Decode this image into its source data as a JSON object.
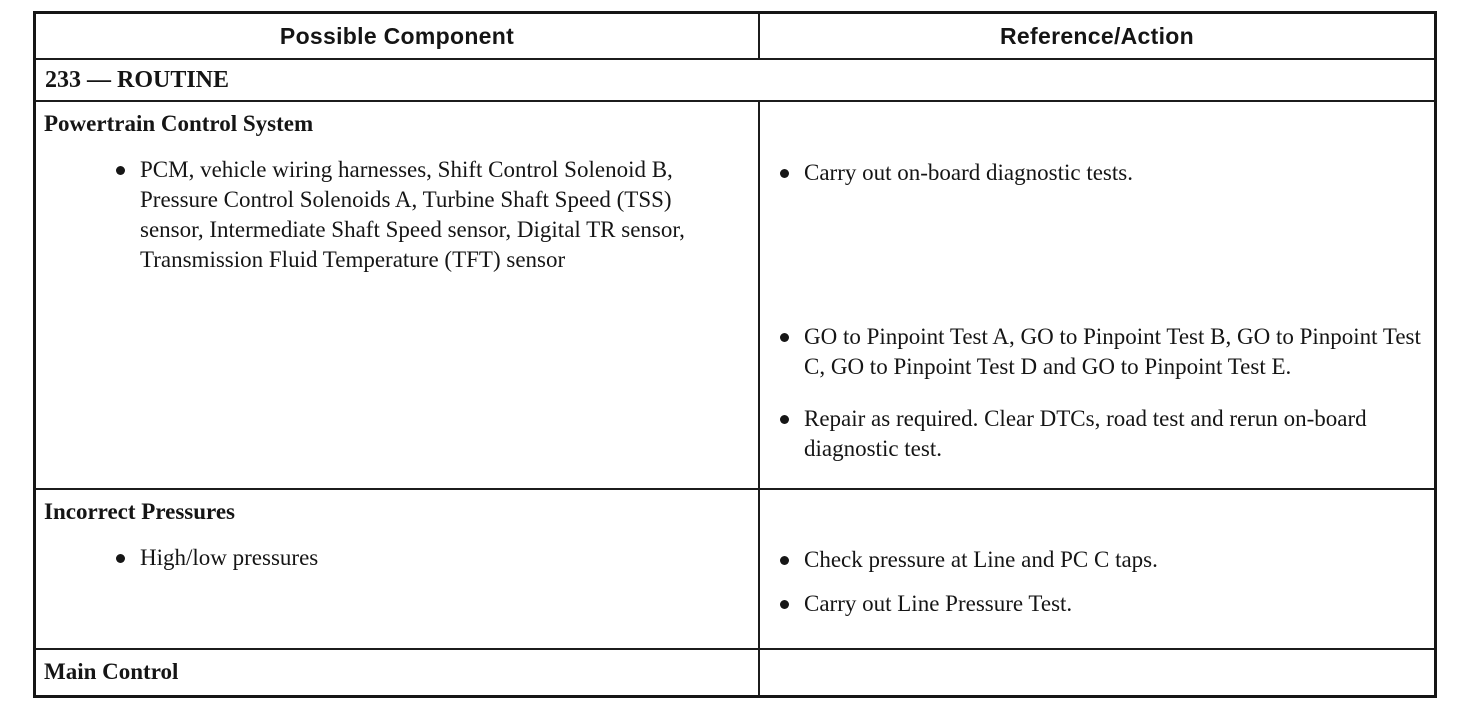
{
  "table": {
    "columns": [
      "Possible Component",
      "Reference/Action"
    ],
    "section_title": "233 — ROUTINE",
    "rows": [
      {
        "component_title": "Powertrain Control System",
        "component_bullets": [
          "PCM, vehicle wiring harnesses, Shift Control Solenoid B, Pressure Control Solenoids A, Turbine Shaft Speed (TSS) sensor, Intermediate Shaft Speed sensor, Digital TR sensor, Transmission Fluid Temperature (TFT) sensor"
        ],
        "action_bullets": [
          "Carry out on-board diagnostic tests.",
          "GO to Pinpoint Test A, GO to Pinpoint Test B, GO to Pinpoint Test C, GO to Pinpoint Test D and GO to Pinpoint Test E.",
          "Repair as required. Clear DTCs, road test and rerun on-board diagnostic test."
        ]
      },
      {
        "component_title": "Incorrect Pressures",
        "component_bullets": [
          "High/low pressures"
        ],
        "action_bullets": [
          "Check pressure at Line and PC C taps.",
          "Carry out Line Pressure Test."
        ]
      },
      {
        "component_title": "Main Control",
        "component_bullets": [],
        "action_bullets": []
      }
    ]
  }
}
